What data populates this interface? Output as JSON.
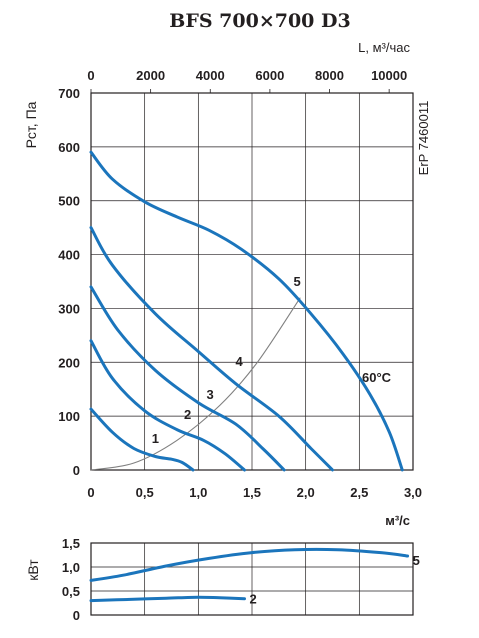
{
  "chart_data": [
    {
      "type": "line",
      "title": "BFS 700×700 D3",
      "top_axis_label": "L, м³/час",
      "top_ticks": [
        "0",
        "2000",
        "4000",
        "6000",
        "8000",
        "10000"
      ],
      "xlabel": "м³/с",
      "ylabel": "Рст, Па",
      "side_label": "ErP 7460011",
      "x_ticks": [
        "0",
        "0,5",
        "1,0",
        "1,5",
        "2,0",
        "2,5",
        "3,0"
      ],
      "y_ticks": [
        "0",
        "100",
        "200",
        "300",
        "400",
        "500",
        "600",
        "700"
      ],
      "xlim": [
        0,
        3.0
      ],
      "ylim": [
        0,
        700
      ],
      "grid": true,
      "annotation": "60°C",
      "series": [
        {
          "name": "1",
          "color": "#1b75bc",
          "x": [
            0,
            0.2,
            0.4,
            0.6,
            0.75,
            0.85,
            0.95
          ],
          "y": [
            113,
            70,
            40,
            25,
            20,
            14,
            0
          ]
        },
        {
          "name": "2",
          "color": "#1b75bc",
          "x": [
            0,
            0.2,
            0.5,
            0.8,
            1.05,
            1.25,
            1.43
          ],
          "y": [
            240,
            170,
            110,
            75,
            55,
            30,
            0
          ]
        },
        {
          "name": "3",
          "color": "#1b75bc",
          "x": [
            0,
            0.25,
            0.6,
            1.0,
            1.35,
            1.6,
            1.8
          ],
          "y": [
            340,
            260,
            185,
            125,
            85,
            40,
            0
          ]
        },
        {
          "name": "4",
          "color": "#1b75bc",
          "x": [
            0,
            0.2,
            0.6,
            1.0,
            1.35,
            1.75,
            2.05,
            2.25
          ],
          "y": [
            450,
            380,
            290,
            220,
            160,
            100,
            40,
            0
          ]
        },
        {
          "name": "5",
          "color": "#1b75bc",
          "x": [
            0,
            0.2,
            0.5,
            0.8,
            1.1,
            1.4,
            1.75,
            2.05,
            2.35,
            2.6,
            2.78,
            2.9
          ],
          "y": [
            590,
            540,
            498,
            470,
            445,
            410,
            355,
            290,
            215,
            140,
            70,
            0
          ]
        }
      ],
      "system_curve": {
        "color": "#808080",
        "x": [
          0,
          0.4,
          0.8,
          1.2,
          1.55,
          1.95
        ],
        "y": [
          0,
          13,
          55,
          120,
          200,
          320
        ]
      },
      "curve_labels": [
        {
          "text": "1",
          "x": 0.6,
          "y": 50
        },
        {
          "text": "2",
          "x": 0.9,
          "y": 95
        },
        {
          "text": "3",
          "x": 1.11,
          "y": 132
        },
        {
          "text": "4",
          "x": 1.38,
          "y": 193
        },
        {
          "text": "5",
          "x": 1.92,
          "y": 342
        }
      ]
    },
    {
      "type": "line",
      "ylabel": "кВт",
      "y_ticks": [
        "0",
        "0,5",
        "1,0",
        "1,5"
      ],
      "xlim": [
        0,
        3.0
      ],
      "ylim": [
        0,
        1.5
      ],
      "grid": true,
      "series": [
        {
          "name": "5",
          "color": "#1b75bc",
          "x": [
            0,
            0.3,
            0.7,
            1.1,
            1.5,
            1.9,
            2.3,
            2.7,
            2.95
          ],
          "y": [
            0.72,
            0.83,
            1.02,
            1.18,
            1.3,
            1.36,
            1.36,
            1.3,
            1.23
          ]
        },
        {
          "name": "2",
          "color": "#1b75bc",
          "x": [
            0,
            0.3,
            0.7,
            1.0,
            1.2,
            1.43
          ],
          "y": [
            0.3,
            0.32,
            0.35,
            0.37,
            0.36,
            0.34
          ]
        }
      ],
      "end_labels": [
        "5",
        "2"
      ]
    }
  ]
}
